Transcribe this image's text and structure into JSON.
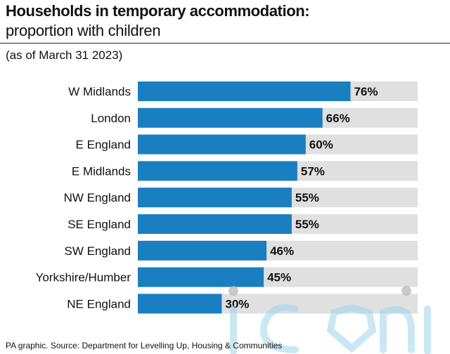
{
  "header": {
    "title": "Households in temporary accommodation:",
    "subtitle": "proportion with children",
    "note": "(as of March 31 2023)"
  },
  "footer": {
    "source": "PA graphic. Source: Department for Levelling Up, Housing & Communities"
  },
  "watermark": {
    "text": "iconic"
  },
  "colors": {
    "bar": "#1a7fc1",
    "track": "#e0e0e0",
    "text": "#111111"
  },
  "chart_data": {
    "type": "bar",
    "orientation": "horizontal",
    "categories": [
      "W Midlands",
      "London",
      "E England",
      "E Midlands",
      "NW England",
      "SE England",
      "SW England",
      "Yorkshire/Humber",
      "NE England"
    ],
    "values": [
      76,
      66,
      60,
      57,
      55,
      55,
      46,
      45,
      30
    ],
    "value_labels": [
      "76%",
      "66%",
      "60%",
      "57%",
      "55%",
      "55%",
      "46%",
      "45%",
      "30%"
    ],
    "unit": "%",
    "xlim": [
      0,
      100
    ],
    "grid": false,
    "legend": "none"
  }
}
